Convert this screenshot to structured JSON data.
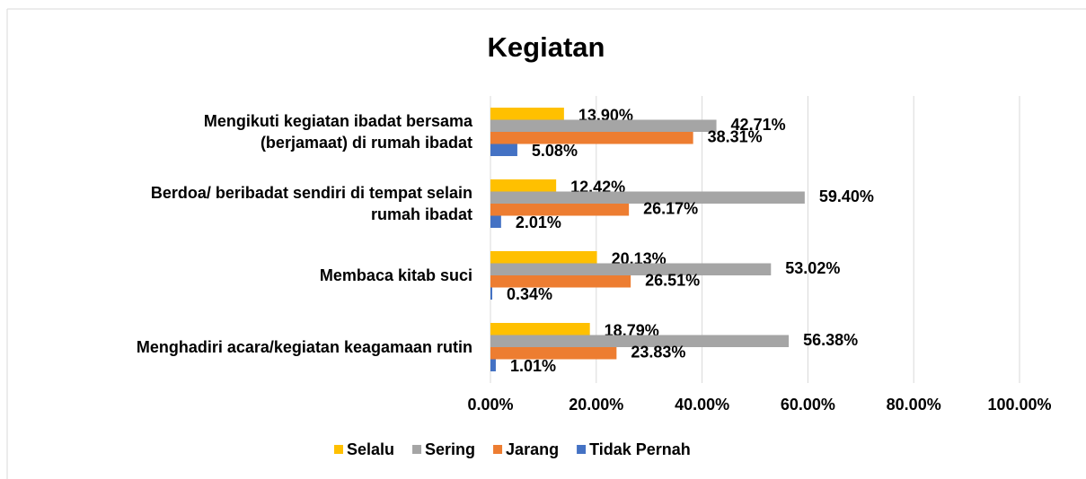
{
  "chart_data": {
    "type": "hbar",
    "title": "Kegiatan",
    "categories": [
      "Mengikuti kegiatan ibadat bersama\n(berjamaat) di rumah ibadat",
      "Berdoa/ beribadat sendiri di tempat selain\nrumah ibadat",
      "Membaca kitab suci",
      "Menghadiri acara/kegiatan keagamaan rutin"
    ],
    "series": [
      {
        "name": "Selalu",
        "color": "#FFC000",
        "values": [
          13.9,
          12.42,
          20.13,
          18.79
        ],
        "value_labels": [
          "13.90%",
          "12.42%",
          "20.13%",
          "18.79%"
        ]
      },
      {
        "name": "Sering",
        "color": "#A5A5A5",
        "values": [
          42.71,
          59.4,
          53.02,
          56.38
        ],
        "value_labels": [
          "42.71%",
          "59.40%",
          "53.02%",
          "56.38%"
        ]
      },
      {
        "name": "Jarang",
        "color": "#ED7D31",
        "values": [
          38.31,
          26.17,
          26.51,
          23.83
        ],
        "value_labels": [
          "38.31%",
          "26.17%",
          "26.51%",
          "23.83%"
        ]
      },
      {
        "name": "Tidak Pernah",
        "color": "#4472C4",
        "values": [
          5.08,
          2.01,
          0.34,
          1.01
        ],
        "value_labels": [
          "5.08%",
          "2.01%",
          "0.34%",
          "1.01%"
        ]
      }
    ],
    "xlim": [
      0,
      100
    ],
    "xticks": [
      {
        "value": 0,
        "label": "0.00%"
      },
      {
        "value": 20,
        "label": "20.00%"
      },
      {
        "value": 40,
        "label": "40.00%"
      },
      {
        "value": 60,
        "label": "60.00%"
      },
      {
        "value": 80,
        "label": "80.00%"
      },
      {
        "value": 100,
        "label": "100.00%"
      }
    ],
    "grid": true,
    "legend": "bottom"
  }
}
